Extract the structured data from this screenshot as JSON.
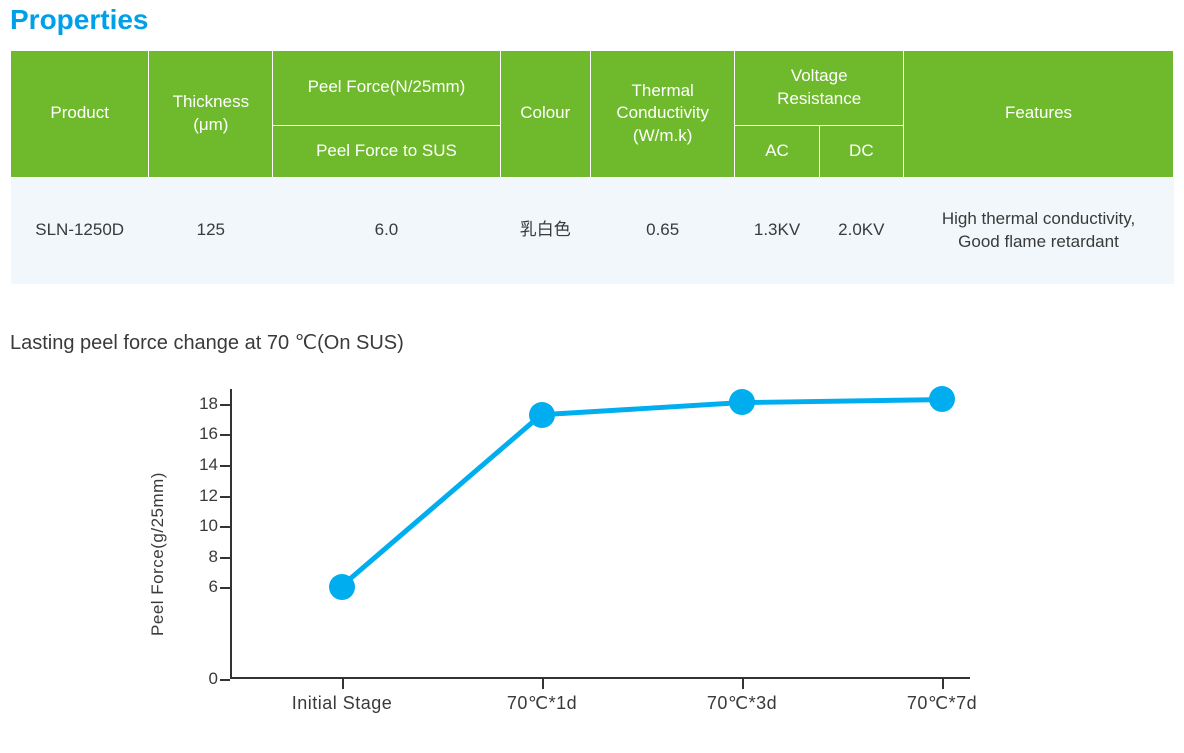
{
  "title": "Properties",
  "title_color": "#00a0e9",
  "table": {
    "header_bg": "#6fba2c",
    "header_fg": "#ffffff",
    "row_bg": "#f1f7fa",
    "columns": {
      "product": "Product",
      "thickness": "Thickness\n(μm)",
      "peel_force_group": "Peel Force(N/25mm)",
      "peel_force_sub": "Peel Force to SUS",
      "colour": "Colour",
      "thermal": "Thermal\nConductivity\n(W/m.k)",
      "voltage_group": "Voltage\nResistance",
      "voltage_ac": "AC",
      "voltage_dc": "DC",
      "features": "Features"
    },
    "row": {
      "product": "SLN-1250D",
      "thickness": "125",
      "peel_force": "6.0",
      "colour": "乳白色",
      "thermal": "0.65",
      "ac": "1.3KV",
      "dc": "2.0KV",
      "features": "High thermal conductivity,\nGood flame retardant"
    }
  },
  "chart": {
    "subtitle": "Lasting peel force change at 70 ℃(On SUS)",
    "ylabel": "Peel Force(g/25mm)",
    "type": "line",
    "x_categories": [
      "Initial Stage",
      "70℃*1d",
      "70℃*3d",
      "70℃*7d"
    ],
    "y_values": [
      6.0,
      17.3,
      18.1,
      18.3
    ],
    "y_ticks": [
      0,
      6,
      8,
      10,
      12,
      14,
      16,
      18
    ],
    "ylim": [
      0,
      19
    ],
    "line_color": "#00aeef",
    "line_width": 5,
    "marker_color": "#00aeef",
    "marker_radius": 13,
    "axis_color": "#333333",
    "background_color": "#ffffff",
    "label_fontsize": 17,
    "tick_fontsize": 17
  }
}
